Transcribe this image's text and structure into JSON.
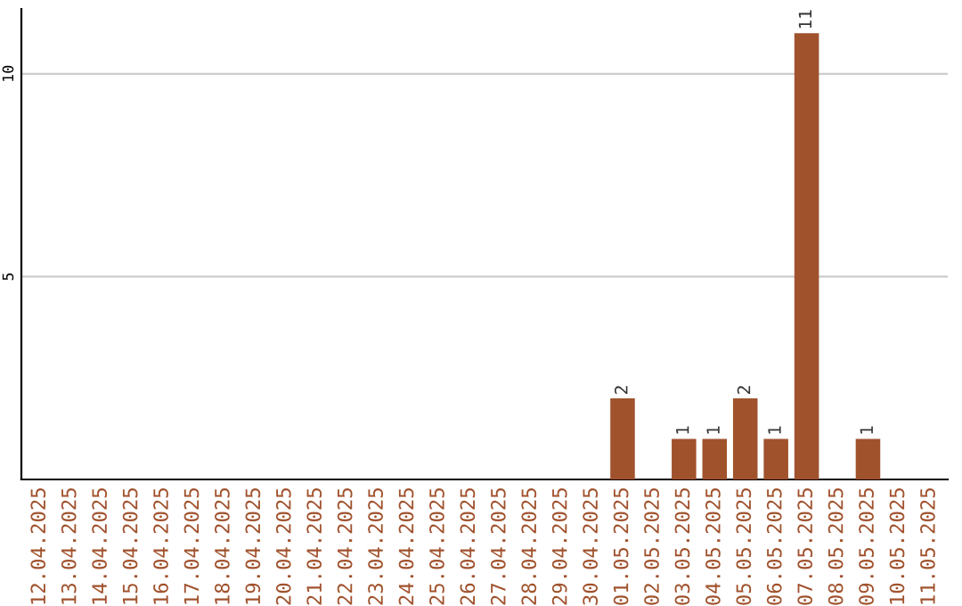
{
  "chart_data": {
    "type": "bar",
    "categories": [
      "12.04.2025",
      "13.04.2025",
      "14.04.2025",
      "15.04.2025",
      "16.04.2025",
      "17.04.2025",
      "18.04.2025",
      "19.04.2025",
      "20.04.2025",
      "21.04.2025",
      "22.04.2025",
      "23.04.2025",
      "24.04.2025",
      "25.04.2025",
      "26.04.2025",
      "27.04.2025",
      "28.04.2025",
      "29.04.2025",
      "30.04.2025",
      "01.05.2025",
      "02.05.2025",
      "03.05.2025",
      "04.05.2025",
      "05.05.2025",
      "06.05.2025",
      "07.05.2025",
      "08.05.2025",
      "09.05.2025",
      "10.05.2025",
      "11.05.2025"
    ],
    "values": [
      null,
      null,
      null,
      null,
      null,
      null,
      null,
      null,
      null,
      null,
      null,
      null,
      null,
      null,
      null,
      null,
      null,
      null,
      null,
      2,
      null,
      1,
      1,
      2,
      1,
      11,
      null,
      1,
      null,
      null
    ],
    "color": "#a0522d",
    "ylim": [
      0,
      11.6
    ],
    "yticks": [
      5,
      10
    ],
    "grid": "y",
    "data_labels": true
  }
}
